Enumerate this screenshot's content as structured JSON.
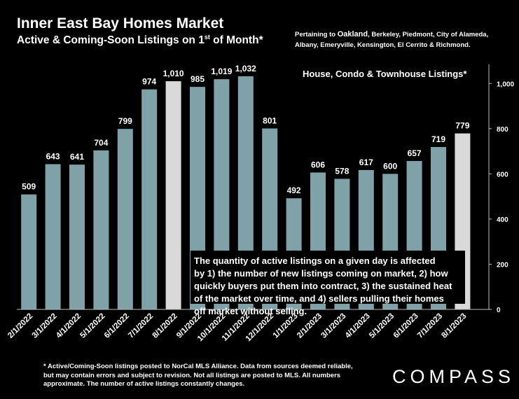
{
  "header": {
    "title": "Inner East Bay Homes Market",
    "subtitle_main": "Active & Coming-Soon Listings on 1",
    "subtitle_sup": "st",
    "subtitle_tail": " of Month*",
    "note_prefix": "Pertaining to ",
    "note_city": "Oakland",
    "note_rest": ", Berkeley, Piedmont, City of Alameda, Albany, Emeryville, Kensington, El Cerrito & Richmond."
  },
  "chart_data": {
    "type": "bar",
    "title": "Inner East Bay Homes Market",
    "subtitle": "Active & Coming-Soon Listings on 1st of Month*",
    "legend": "House, Condo & Townhouse Listings*",
    "categories": [
      "2/1/2022",
      "3/1/2022",
      "4/1/2022",
      "5/1/2022",
      "6/1/2022",
      "7/1/2022",
      "8/1/2022",
      "9/1/2022",
      "10/1/2022",
      "11/1/2022",
      "12/1/2022",
      "1/1/2023",
      "2/1/2023",
      "3/1/2023",
      "4/1/2023",
      "5/1/2023",
      "6/1/2023",
      "7/1/2023",
      "8/1/2023"
    ],
    "values": [
      509,
      643,
      641,
      704,
      799,
      974,
      1010,
      985,
      1019,
      1032,
      801,
      492,
      606,
      578,
      617,
      600,
      657,
      719,
      779
    ],
    "value_labels": [
      "509",
      "643",
      "641",
      "704",
      "799",
      "974",
      "1,010",
      "985",
      "1,019",
      "1,032",
      "801",
      "492",
      "606",
      "578",
      "617",
      "600",
      "657",
      "719",
      "779"
    ],
    "highlighted": [
      "8/1/2022",
      "8/1/2023"
    ],
    "ylim": [
      0,
      1100
    ],
    "yticks": [
      0,
      200,
      400,
      600,
      800,
      1000
    ],
    "ytick_labels": [
      "0",
      "200",
      "400",
      "600",
      "800",
      "1,000"
    ],
    "y_axis_side": "right",
    "grid": false,
    "annotation": "The quantity of active listings on a given day is affected by 1) the number of new listings coming on market, 2) how quickly buyers put them into contract, 3) the sustained heat of the market over time, and 4) sellers pulling their homes off market without selling.",
    "colors": {
      "bar": "#7ea2a8",
      "highlight": "#d9d9d9",
      "background": "#000000",
      "text": "#ffffff"
    }
  },
  "footer": {
    "footnote": "* Active/Coming-Soon listings posted to NorCal MLS Alliance.  Data from sources deemed reliable, but may contain errors and subject to revision.  Not all listings are posted to MLS. All numbers approximate. The number of active listings constantly changes.",
    "brand": "COMPASS"
  }
}
